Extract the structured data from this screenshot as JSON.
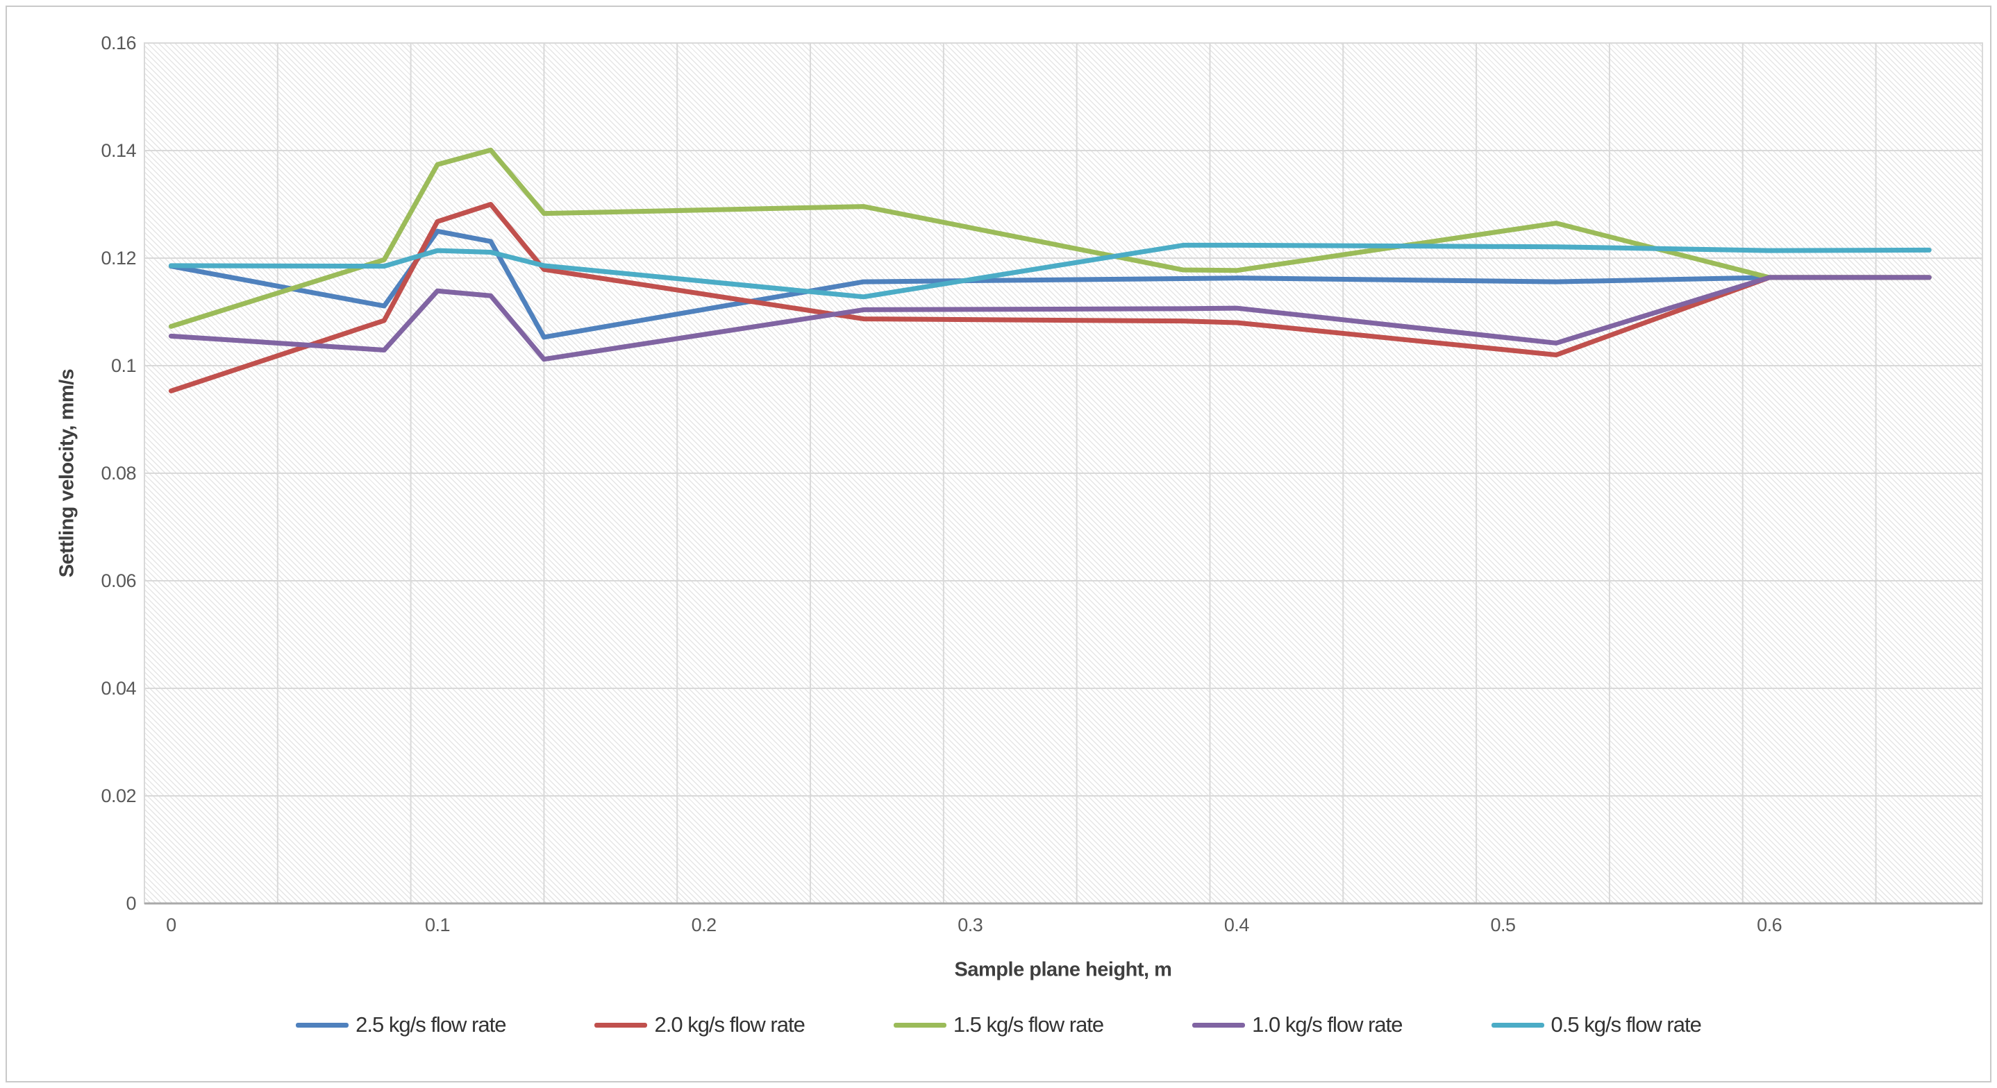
{
  "chart": {
    "y_axis_title": "Settling velocity, mm/s",
    "x_axis_title": "Sample plane height, m"
  },
  "chart_data": {
    "type": "line",
    "title": "",
    "xlabel": "Sample plane height, m",
    "ylabel": "Settling velocity, mm/s",
    "xlim": [
      -0.01,
      0.68
    ],
    "ylim": [
      0,
      0.16
    ],
    "x_grid_step": 0.05,
    "y_grid_step": 0.02,
    "grid": true,
    "legend_position": "bottom",
    "x_tick_labels": [
      "0",
      "0.1",
      "0.2",
      "0.3",
      "0.4",
      "0.5",
      "0.6"
    ],
    "y_tick_labels": [
      "0",
      "0.02",
      "0.04",
      "0.06",
      "0.08",
      "0.1",
      "0.12",
      "0.14",
      "0.16"
    ],
    "x": [
      0,
      0.08,
      0.1,
      0.12,
      0.14,
      0.26,
      0.38,
      0.4,
      0.52,
      0.6,
      0.66
    ],
    "series": [
      {
        "name": "2.5 kg/s flow rate",
        "color": "#4F81BD",
        "values": [
          0.1185,
          0.1111,
          0.125,
          0.1231,
          0.1053,
          0.1156,
          0.1162,
          0.1163,
          0.1156,
          0.1164,
          0.1164
        ]
      },
      {
        "name": "2.0 kg/s flow rate",
        "color": "#C0504D",
        "values": [
          0.0953,
          0.1084,
          0.1268,
          0.13,
          0.1179,
          0.1087,
          0.1083,
          0.108,
          0.102,
          0.1164,
          0.1164
        ]
      },
      {
        "name": "1.5 kg/s flow rate",
        "color": "#9BBB59",
        "values": [
          0.1073,
          0.1197,
          0.1374,
          0.1401,
          0.1283,
          0.1296,
          0.1178,
          0.1177,
          0.1265,
          0.1164,
          0.1164
        ]
      },
      {
        "name": "1.0 kg/s flow rate",
        "color": "#8064A2",
        "values": [
          0.1055,
          0.1029,
          0.1139,
          0.113,
          0.1012,
          0.1104,
          0.1106,
          0.1107,
          0.1042,
          0.1164,
          0.1164
        ]
      },
      {
        "name": "0.5 kg/s flow rate",
        "color": "#4BACC6",
        "values": [
          0.1186,
          0.1185,
          0.1214,
          0.1211,
          0.1186,
          0.1128,
          0.1224,
          0.1224,
          0.1221,
          0.1214,
          0.1215
        ]
      }
    ]
  }
}
